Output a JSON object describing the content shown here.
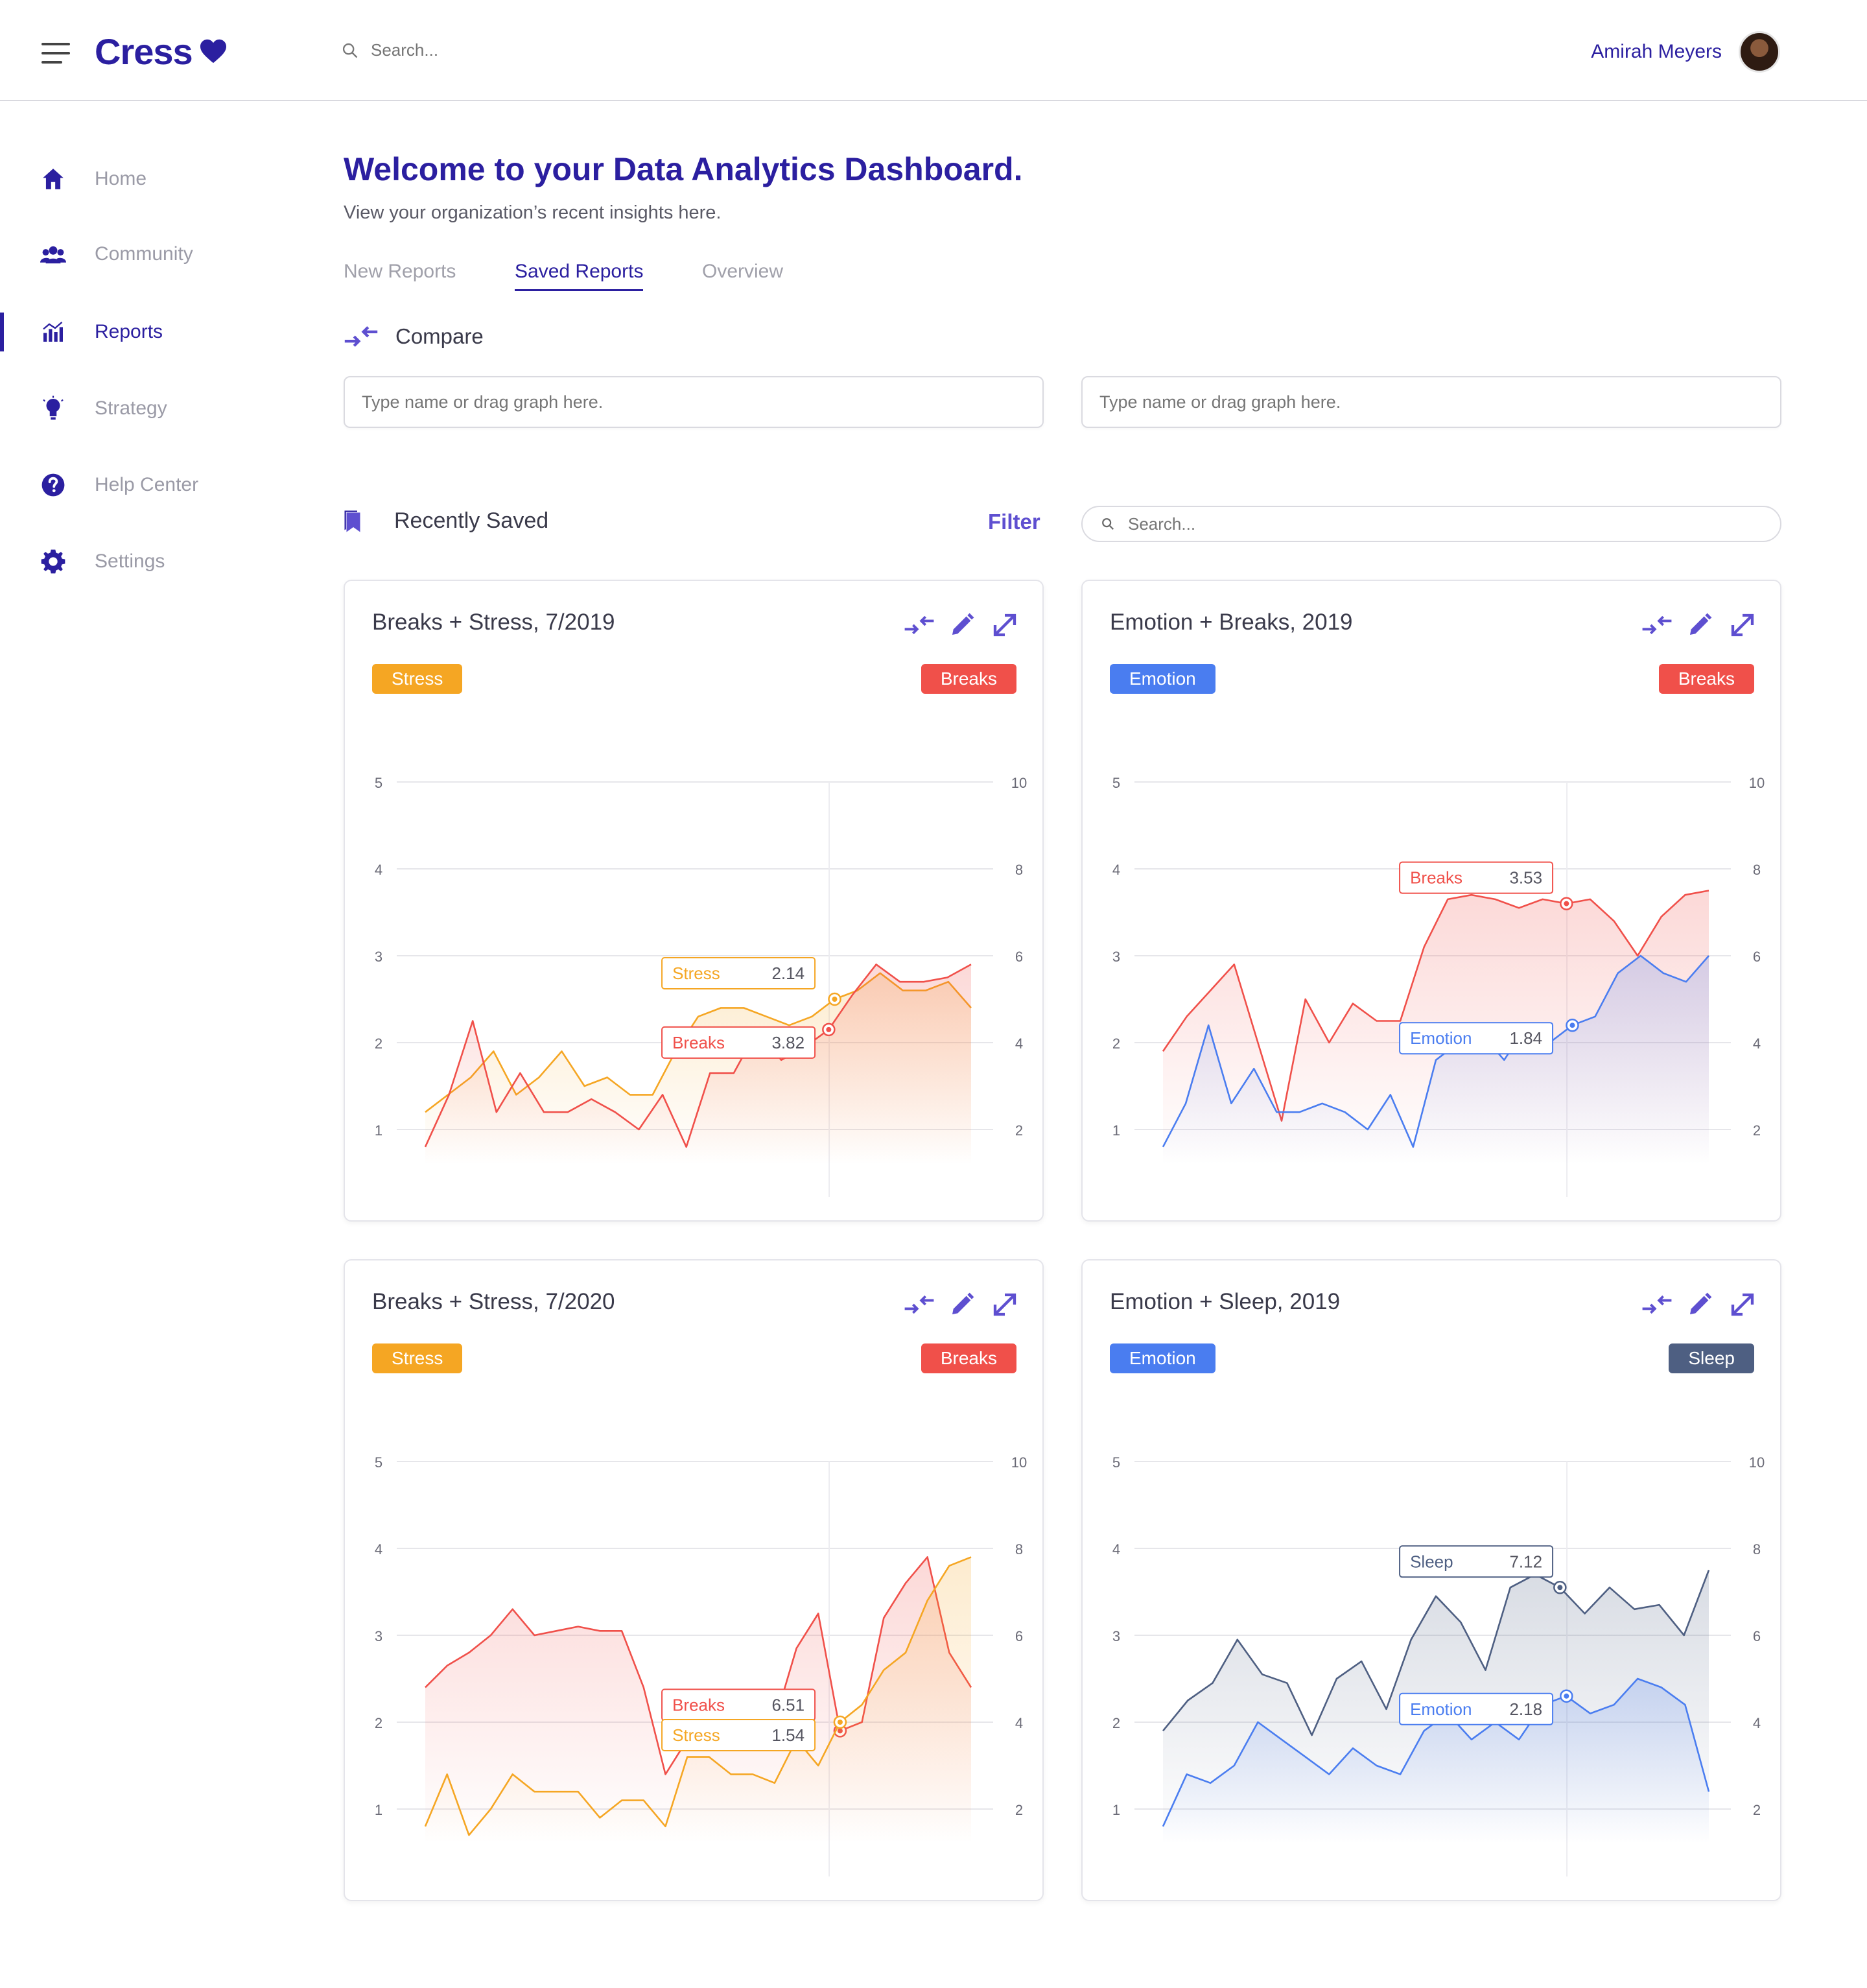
{
  "header": {
    "brand": "Cress",
    "search_placeholder": "Search...",
    "user_name": "Amirah Meyers"
  },
  "sidebar": {
    "items": [
      {
        "label": "Home",
        "icon": "home-icon"
      },
      {
        "label": "Community",
        "icon": "community-icon"
      },
      {
        "label": "Reports",
        "icon": "reports-icon",
        "active": true
      },
      {
        "label": "Strategy",
        "icon": "lightbulb-icon"
      },
      {
        "label": "Help Center",
        "icon": "help-icon"
      },
      {
        "label": "Settings",
        "icon": "gear-icon"
      }
    ]
  },
  "main": {
    "title": "Welcome to your Data Analytics Dashboard.",
    "subtitle": "View your organization’s recent insights here.",
    "tabs": [
      {
        "label": "New Reports"
      },
      {
        "label": "Saved Reports",
        "active": true
      },
      {
        "label": "Overview"
      }
    ],
    "compare": {
      "label": "Compare",
      "placeholder_1": "Type name or drag graph here.",
      "placeholder_2": "Type name or drag graph here."
    },
    "recent": {
      "label": "Recently Saved",
      "filter_label": "Filter",
      "search_placeholder": "Search..."
    }
  },
  "colors": {
    "brand": "#2b1fa0",
    "accent": "#5e4fd0",
    "stress": "#f5a623",
    "breaks": "#f0504a",
    "emotion": "#4a7df0",
    "sleep": "#4e5f82"
  },
  "chart_data": [
    {
      "type": "line",
      "title": "Breaks + Stress, 7/2019",
      "left_badge": "Stress",
      "right_badge": "Breaks",
      "left_axis": {
        "min": 0,
        "max": 5,
        "ticks": [
          "0",
          "1",
          "2",
          "3",
          "4",
          "5"
        ]
      },
      "right_axis": {
        "min": 0,
        "max": 10,
        "ticks": [
          "0",
          "2",
          "4",
          "6",
          "8",
          "10"
        ]
      },
      "x_start": "7/8/19",
      "x_end": "7/15/19",
      "series": [
        {
          "name": "Stress",
          "color": "#f5a623",
          "axis": "left",
          "values": [
            1.2,
            1.4,
            1.6,
            1.9,
            1.4,
            1.6,
            1.9,
            1.5,
            1.6,
            1.4,
            1.4,
            1.9,
            2.3,
            2.4,
            2.4,
            2.3,
            2.2,
            2.3,
            2.5,
            2.6,
            2.8,
            2.6,
            2.6,
            2.7,
            2.4
          ],
          "tooltip": {
            "label": "Stress",
            "value": "2.14"
          }
        },
        {
          "name": "Breaks",
          "color": "#f0504a",
          "axis": "right",
          "values": [
            1.6,
            2.8,
            4.5,
            2.4,
            3.3,
            2.4,
            2.4,
            2.7,
            2.4,
            2.0,
            2.8,
            1.6,
            3.3,
            3.3,
            4.3,
            3.6,
            3.9,
            4.3,
            5.1,
            5.8,
            5.4,
            5.4,
            5.5,
            5.8
          ],
          "tooltip": {
            "label": "Breaks",
            "value": "3.82"
          }
        }
      ]
    },
    {
      "type": "line",
      "title": "Emotion + Breaks, 2019",
      "left_badge": "Emotion",
      "right_badge": "Breaks",
      "left_axis": {
        "min": 0,
        "max": 5,
        "ticks": [
          "0",
          "1",
          "2",
          "3",
          "4",
          "5"
        ]
      },
      "right_axis": {
        "min": 0,
        "max": 10,
        "ticks": [
          "0",
          "2",
          "4",
          "6",
          "8",
          "10"
        ]
      },
      "x_start": "1/22/19",
      "x_end": "2/8/19",
      "series": [
        {
          "name": "Breaks",
          "color": "#f0504a",
          "axis": "right",
          "values": [
            3.8,
            4.6,
            5.2,
            5.8,
            4.0,
            2.2,
            5.0,
            4.0,
            4.9,
            4.5,
            4.5,
            6.2,
            7.3,
            7.4,
            7.3,
            7.1,
            7.3,
            7.2,
            7.3,
            6.8,
            6.0,
            6.9,
            7.4,
            7.5
          ],
          "tooltip": {
            "label": "Breaks",
            "value": "3.53"
          }
        },
        {
          "name": "Emotion",
          "color": "#4a7df0",
          "axis": "left",
          "values": [
            0.8,
            1.3,
            2.2,
            1.3,
            1.7,
            1.2,
            1.2,
            1.3,
            1.2,
            1.0,
            1.4,
            0.8,
            1.8,
            2.0,
            2.1,
            1.8,
            2.2,
            2.0,
            2.2,
            2.3,
            2.8,
            3.0,
            2.8,
            2.7,
            3.0
          ],
          "tooltip": {
            "label": "Emotion",
            "value": "1.84"
          }
        }
      ]
    },
    {
      "type": "line",
      "title": "Breaks + Stress, 7/2020",
      "left_badge": "Stress",
      "right_badge": "Breaks",
      "left_axis": {
        "min": 0,
        "max": 5,
        "ticks": [
          "0",
          "1",
          "2",
          "3",
          "4",
          "5"
        ]
      },
      "right_axis": {
        "min": 0,
        "max": 10,
        "ticks": [
          "0",
          "2",
          "4",
          "6",
          "8",
          "10"
        ]
      },
      "x_start": "7/8/20",
      "x_end": "7/15/20",
      "series": [
        {
          "name": "Breaks",
          "color": "#f0504a",
          "axis": "right",
          "values": [
            4.8,
            5.3,
            5.6,
            6.0,
            6.6,
            6.0,
            6.1,
            6.2,
            6.1,
            6.1,
            4.8,
            2.8,
            3.6,
            4.4,
            4.5,
            4.7,
            4.0,
            5.7,
            6.5,
            3.8,
            4.0,
            6.4,
            7.2,
            7.8,
            5.6,
            4.8
          ],
          "tooltip": {
            "label": "Breaks",
            "value": "6.51"
          }
        },
        {
          "name": "Stress",
          "color": "#f5a623",
          "axis": "left",
          "values": [
            0.8,
            1.4,
            0.7,
            1.0,
            1.4,
            1.2,
            1.2,
            1.2,
            0.9,
            1.1,
            1.1,
            0.8,
            1.6,
            1.6,
            1.4,
            1.4,
            1.3,
            1.8,
            1.5,
            2.0,
            2.2,
            2.6,
            2.8,
            3.4,
            3.8,
            3.9
          ],
          "tooltip": {
            "label": "Stress",
            "value": "1.54"
          }
        }
      ]
    },
    {
      "type": "line",
      "title": "Emotion + Sleep, 2019",
      "left_badge": "Emotion",
      "right_badge": "Sleep",
      "left_axis": {
        "min": 0,
        "max": 5,
        "ticks": [
          "0",
          "1",
          "2",
          "3",
          "4",
          "5"
        ]
      },
      "right_axis": {
        "min": 0,
        "max": 10,
        "ticks": [
          "0",
          "2",
          "4",
          "6",
          "8",
          "10"
        ]
      },
      "x_start": "9/5/19",
      "x_end": "10/11/19",
      "series": [
        {
          "name": "Sleep",
          "color": "#4e5f82",
          "axis": "right",
          "values": [
            3.8,
            4.5,
            4.9,
            5.9,
            5.1,
            4.9,
            3.7,
            5.0,
            5.4,
            4.3,
            5.9,
            6.9,
            6.3,
            5.2,
            7.1,
            7.4,
            7.1,
            6.5,
            7.1,
            6.6,
            6.7,
            6.0,
            7.5
          ],
          "tooltip": {
            "label": "Sleep",
            "value": "7.12"
          }
        },
        {
          "name": "Emotion",
          "color": "#4a7df0",
          "axis": "left",
          "values": [
            0.8,
            1.4,
            1.3,
            1.5,
            2.0,
            1.8,
            1.6,
            1.4,
            1.7,
            1.5,
            1.4,
            1.9,
            2.1,
            1.8,
            2.0,
            1.8,
            2.2,
            2.3,
            2.1,
            2.2,
            2.5,
            2.4,
            2.2,
            1.2
          ],
          "tooltip": {
            "label": "Emotion",
            "value": "2.18"
          }
        }
      ]
    }
  ]
}
